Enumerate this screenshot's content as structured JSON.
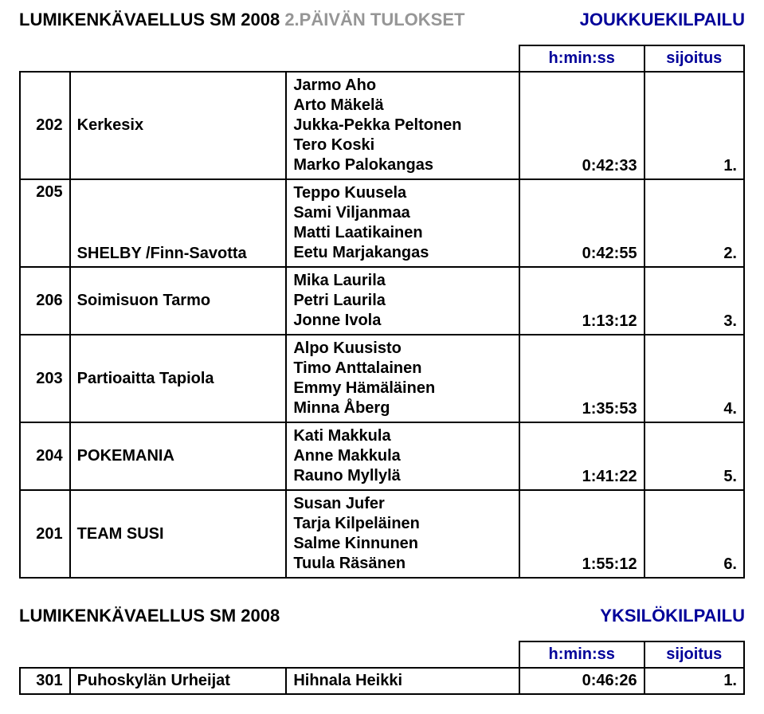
{
  "colors": {
    "blue": "#000099",
    "grey": "#969696",
    "black": "#000000",
    "bg": "#ffffff"
  },
  "header": {
    "title_black": "LUMIKENKÄVAELLUS SM 2008",
    "title_grey": "  2.PÄIVÄN TULOKSET",
    "right": "JOUKKUEKILPAILU"
  },
  "team_table": {
    "columns": {
      "time": "h:min:ss",
      "rank": "sijoitus"
    },
    "rows": [
      {
        "num": "202",
        "team": "Kerkesix",
        "members": [
          "Jarmo Aho",
          "Arto Mäkelä",
          "Jukka-Pekka Peltonen",
          "Tero Koski",
          "Marko Palokangas"
        ],
        "time": "0:42:33",
        "rank": "1."
      },
      {
        "num": "205",
        "team": "SHELBY /Finn-Savotta",
        "team_valign": "bottom",
        "members": [
          "Teppo Kuusela",
          "Sami Viljanmaa",
          "Matti Laatikainen",
          "Eetu Marjakangas"
        ],
        "time": "0:42:55",
        "rank": "2."
      },
      {
        "num": "206",
        "team": "Soimisuon Tarmo",
        "members": [
          "Mika Laurila",
          "Petri Laurila",
          "Jonne Ivola"
        ],
        "time": "1:13:12",
        "rank": "3."
      },
      {
        "num": "203",
        "team": "Partioaitta Tapiola",
        "members": [
          "Alpo Kuusisto",
          "Timo Anttalainen",
          "Emmy Hämäläinen",
          "Minna Åberg"
        ],
        "time": "1:35:53",
        "rank": "4."
      },
      {
        "num": "204",
        "team": "POKEMANIA",
        "members": [
          "Kati Makkula",
          "Anne Makkula",
          "Rauno Myllylä"
        ],
        "time": "1:41:22",
        "rank": "5."
      },
      {
        "num": "201",
        "team": "TEAM SUSI",
        "members": [
          "Susan Jufer",
          "Tarja Kilpeläinen",
          "Salme Kinnunen",
          "Tuula Räsänen"
        ],
        "time": "1:55:12",
        "rank": "6."
      }
    ]
  },
  "sub_header": {
    "left": "LUMIKENKÄVAELLUS SM 2008",
    "right": "YKSILÖKILPAILU"
  },
  "single_table": {
    "columns": {
      "time": "h:min:ss",
      "rank": "sijoitus"
    },
    "rows": [
      {
        "num": "301",
        "team": "Puhoskylän Urheijat",
        "name": "Hihnala Heikki",
        "time": "0:46:26",
        "rank": "1."
      }
    ]
  }
}
